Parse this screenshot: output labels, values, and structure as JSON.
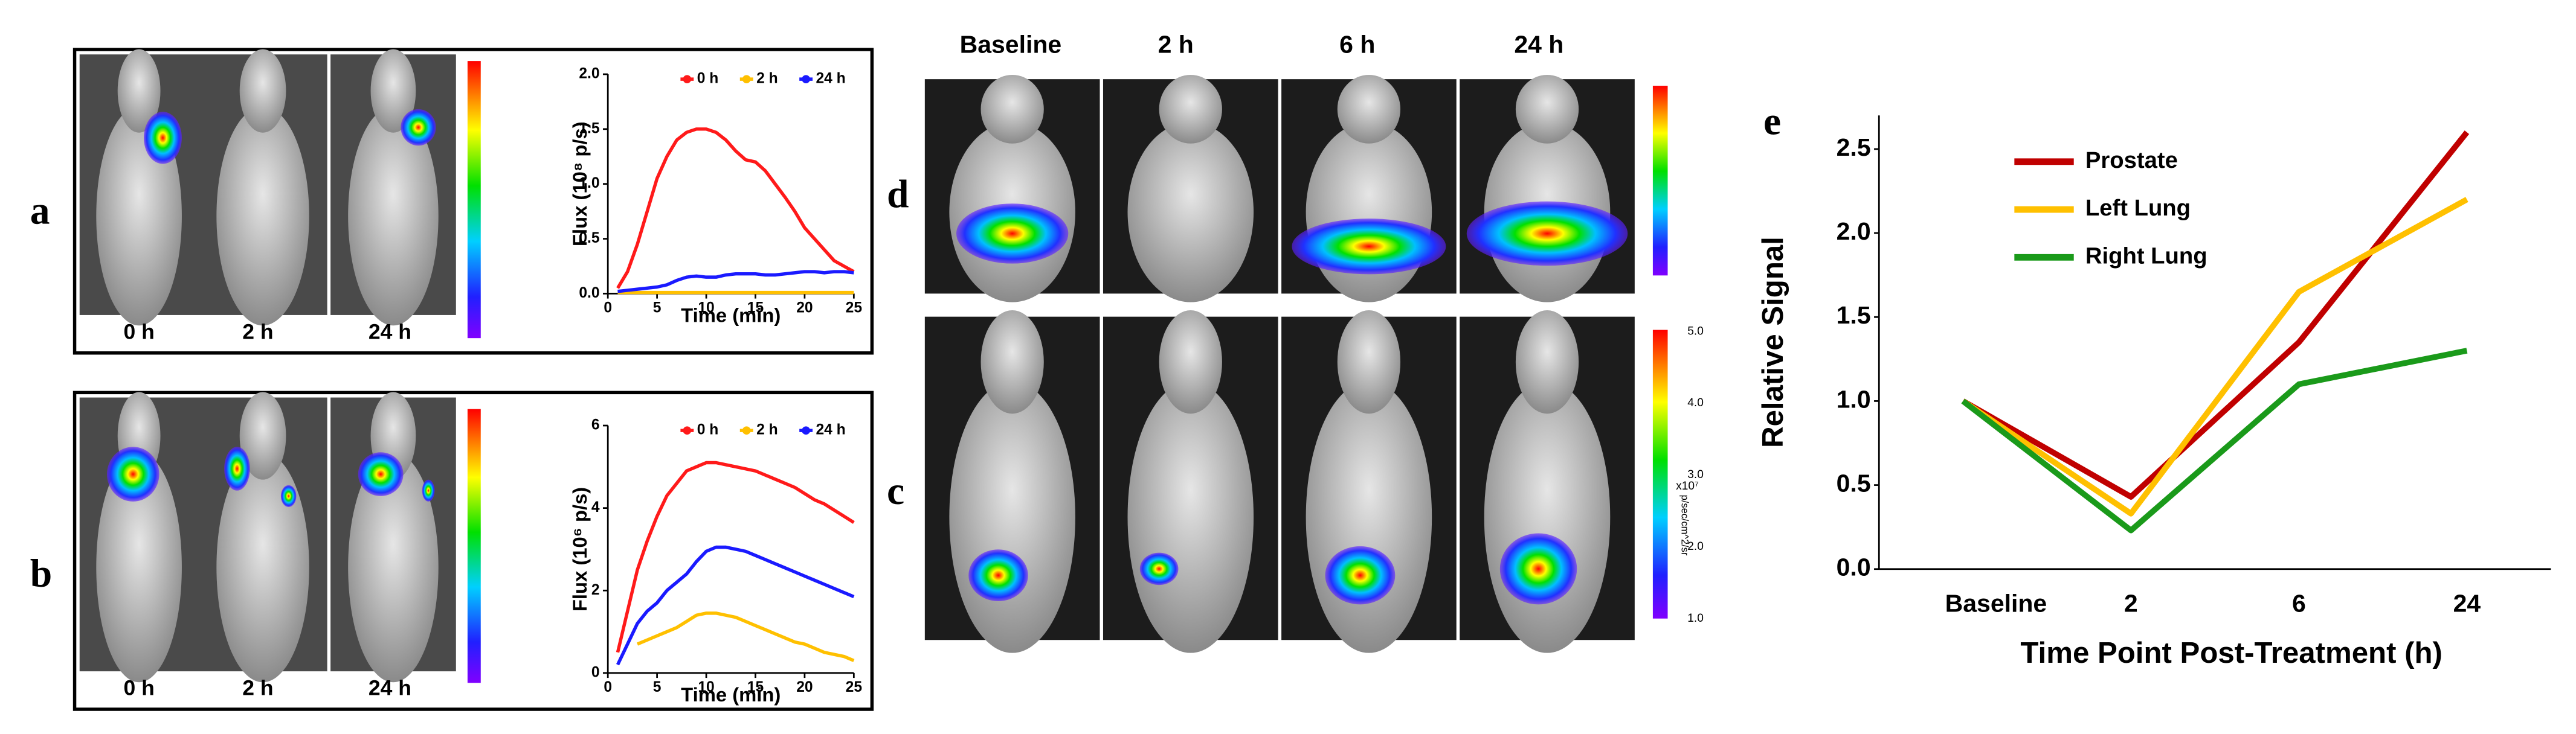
{
  "chart_data": [
    {
      "type": "line",
      "legend": "top",
      "x_label": "Time  (min)",
      "y_label": "Flux (10⁸ p/s)",
      "x": [
        1,
        2,
        3,
        4,
        5,
        6,
        7,
        8,
        9,
        10,
        11,
        12,
        13,
        14,
        15,
        16,
        17,
        18,
        19,
        20,
        21,
        22,
        23,
        24,
        25
      ],
      "xlim": [
        0,
        25
      ],
      "xticks": [
        0,
        5,
        10,
        15,
        20,
        25
      ],
      "ylim": [
        0,
        2
      ],
      "yticks": [
        {
          "value": 0,
          "label": "0.0"
        },
        {
          "value": 0.5,
          "label": "0.5"
        },
        {
          "value": 1,
          "label": "1.0"
        },
        {
          "value": 1.5,
          "label": "1.5"
        },
        {
          "value": 2,
          "label": "2.0"
        }
      ],
      "series": [
        {
          "name": "0 h",
          "color": "#ff1a1a",
          "values": [
            0.05,
            0.2,
            0.45,
            0.75,
            1.05,
            1.25,
            1.4,
            1.47,
            1.5,
            1.5,
            1.47,
            1.4,
            1.3,
            1.22,
            1.2,
            1.12,
            1.0,
            0.88,
            0.75,
            0.6,
            0.5,
            0.4,
            0.3,
            0.25,
            0.2
          ]
        },
        {
          "name": "2 h",
          "color": "#ffc000",
          "values": [
            0.01,
            0.01,
            0.01,
            0.01,
            0.01,
            0.01,
            0.01,
            0.01,
            0.01,
            0.01,
            0.01,
            0.01,
            0.01,
            0.01,
            0.01,
            0.01,
            0.01,
            0.01,
            0.01,
            0.01,
            0.01,
            0.01,
            0.01,
            0.01,
            0.01
          ]
        },
        {
          "name": "24 h",
          "color": "#1a1aff",
          "values": [
            0.02,
            0.03,
            0.04,
            0.05,
            0.06,
            0.08,
            0.12,
            0.15,
            0.16,
            0.15,
            0.15,
            0.17,
            0.18,
            0.18,
            0.18,
            0.17,
            0.17,
            0.18,
            0.19,
            0.2,
            0.2,
            0.19,
            0.2,
            0.2,
            0.19
          ]
        }
      ]
    },
    {
      "type": "line",
      "legend": "top",
      "x_label": "Time  (min)",
      "y_label": "Flux (10⁶ p/s)",
      "x": [
        1,
        2,
        3,
        4,
        5,
        6,
        7,
        8,
        9,
        10,
        11,
        12,
        13,
        14,
        15,
        16,
        17,
        18,
        19,
        20,
        21,
        22,
        23,
        24,
        25
      ],
      "xlim": [
        0,
        25
      ],
      "xticks": [
        0,
        5,
        10,
        15,
        20,
        25
      ],
      "ylim": [
        0,
        6
      ],
      "yticks": [
        0,
        2,
        4,
        6
      ],
      "series": [
        {
          "name": "0 h",
          "color": "#ff1a1a",
          "values": [
            0.5,
            1.5,
            2.5,
            3.2,
            3.8,
            4.3,
            4.6,
            4.9,
            5.0,
            5.1,
            5.1,
            5.05,
            5.0,
            4.95,
            4.9,
            4.8,
            4.7,
            4.6,
            4.5,
            4.35,
            4.2,
            4.1,
            3.95,
            3.8,
            3.65
          ]
        },
        {
          "name": "2 h",
          "color": "#ffc000",
          "values": [
            null,
            null,
            0.7,
            0.8,
            0.9,
            1.0,
            1.1,
            1.25,
            1.4,
            1.45,
            1.45,
            1.4,
            1.35,
            1.25,
            1.15,
            1.05,
            0.95,
            0.85,
            0.75,
            0.7,
            0.6,
            0.5,
            0.45,
            0.4,
            0.3
          ]
        },
        {
          "name": "24 h",
          "color": "#1a1aff",
          "values": [
            0.2,
            0.7,
            1.2,
            1.5,
            1.7,
            2.0,
            2.2,
            2.4,
            2.7,
            2.95,
            3.05,
            3.05,
            3.0,
            2.95,
            2.85,
            2.75,
            2.65,
            2.55,
            2.45,
            2.35,
            2.25,
            2.15,
            2.05,
            1.95,
            1.85
          ]
        }
      ]
    },
    {
      "type": "line",
      "legend": "upper left",
      "x_label": "Time Point Post-Treatment (h)",
      "y_label": "Relative Signal",
      "categories": [
        "Baseline",
        "2",
        "6",
        "24"
      ],
      "ylim": [
        0,
        2.7
      ],
      "yticks": [
        {
          "value": 0,
          "label": "0.0"
        },
        {
          "value": 0.5,
          "label": "0.5"
        },
        {
          "value": 1,
          "label": "1.0"
        },
        {
          "value": 1.5,
          "label": "1.5"
        },
        {
          "value": 2,
          "label": "2.0"
        },
        {
          "value": 2.5,
          "label": "2.5"
        }
      ],
      "series": [
        {
          "name": "Prostate",
          "color": "#c00000",
          "values": [
            1.0,
            0.43,
            1.35,
            2.6
          ]
        },
        {
          "name": "Left Lung",
          "color": "#ffc000",
          "values": [
            1.0,
            0.33,
            1.65,
            2.2
          ]
        },
        {
          "name": "Right Lung",
          "color": "#1a9a1a",
          "values": [
            1.0,
            0.23,
            1.1,
            1.3
          ]
        }
      ]
    }
  ],
  "panels": {
    "a": {
      "label": "a",
      "times": [
        "0 h",
        "2 h",
        "24 h"
      ]
    },
    "b": {
      "label": "b",
      "times": [
        "0 h",
        "2 h",
        "24 h"
      ]
    },
    "d": {
      "label": "d",
      "times": [
        "Baseline",
        "2 h",
        "6 h",
        "24 h"
      ]
    },
    "c": {
      "label": "c",
      "colorbar_ticks": [
        "5.0",
        "4.0",
        "3.0",
        "2.0",
        "1.0"
      ],
      "colorbar_scale": "x10⁷",
      "colorbar_unit": "p/sec/cm^2/sr"
    },
    "e": {
      "label": "e"
    }
  }
}
